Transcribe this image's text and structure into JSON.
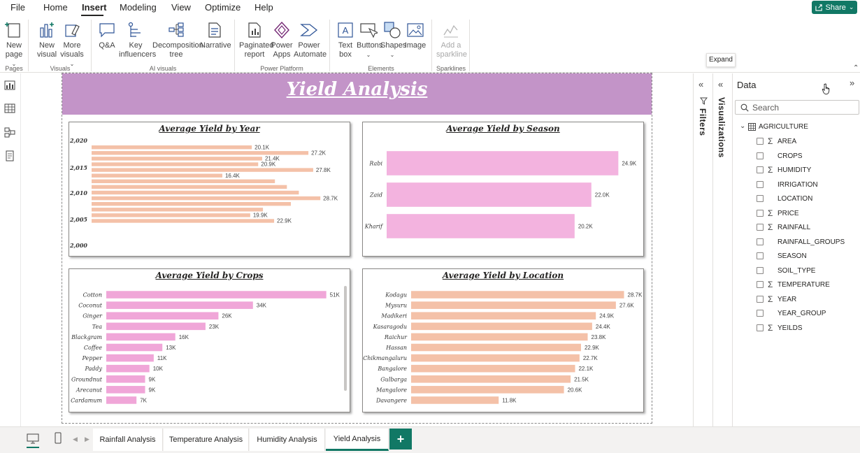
{
  "menu": {
    "items": [
      "File",
      "Home",
      "Insert",
      "Modeling",
      "View",
      "Optimize",
      "Help"
    ],
    "active": "Insert",
    "share_label": "Share"
  },
  "ribbon": {
    "buttons": {
      "new_page": "New\npage",
      "new_visual": "New\nvisual",
      "more_visuals": "More\nvisuals",
      "qa": "Q&A",
      "key_influencers": "Key\ninfluencers",
      "decomposition_tree": "Decomposition\ntree",
      "narrative": "Narrative",
      "paginated_report": "Paginated\nreport",
      "power_apps": "Power\nApps",
      "power_automate": "Power\nAutomate",
      "text_box": "Text\nbox",
      "buttons": "Buttons",
      "shapes": "Shapes",
      "image": "Image",
      "add_sparkline": "Add a\nsparkline"
    },
    "groups": {
      "pages": "Pages",
      "visuals": "Visuals",
      "ai_visuals": "AI visuals",
      "power_platform": "Power Platform",
      "elements": "Elements",
      "sparklines": "Sparklines"
    }
  },
  "report": {
    "title": "Yield Analysis"
  },
  "visuals": {
    "year": {
      "title": "Average Yield by Year",
      "axis_ticks": [
        "2,020",
        "2,015",
        "2,010",
        "2,005",
        "2,000"
      ]
    },
    "season": {
      "title": "Average Yield by Season"
    },
    "crops": {
      "title": "Average Yield by Crops"
    },
    "location": {
      "title": "Average Yield by Location"
    }
  },
  "chart_data": [
    {
      "type": "bar",
      "title": "Average Yield by Year",
      "orientation": "horizontal",
      "y_axis_ticks": [
        2020,
        2015,
        2010,
        2005,
        2000
      ],
      "bar_values": [
        20100,
        27200,
        21400,
        20900,
        27800,
        16400,
        23000,
        24500,
        26000,
        28700,
        25000,
        21500,
        19900,
        22900
      ],
      "data_labels": [
        "20.1K",
        "27.2K",
        "21.4K",
        "20.9K",
        "27.8K",
        "16.4K",
        "",
        "",
        "",
        "28.7K",
        "",
        "",
        "19.9K",
        "22.9K"
      ],
      "xlim": [
        0,
        30000
      ],
      "color": "#f4c1a8"
    },
    {
      "type": "bar",
      "title": "Average Yield by Season",
      "orientation": "horizontal",
      "categories": [
        "Rabi",
        "Zaid",
        "Kharif"
      ],
      "values": [
        24900,
        22000,
        20200
      ],
      "data_labels": [
        "24.9K",
        "22.0K",
        "20.2K"
      ],
      "xlim": [
        0,
        26000
      ],
      "color": "#f3b3df"
    },
    {
      "type": "bar",
      "title": "Average Yield by Crops",
      "orientation": "horizontal",
      "categories": [
        "Cotton",
        "Coconut",
        "Ginger",
        "Tea",
        "Blackgram",
        "Coffee",
        "Pepper",
        "Paddy",
        "Groundnut",
        "Arecanut",
        "Cardamum"
      ],
      "values": [
        51000,
        34000,
        26000,
        23000,
        16000,
        13000,
        11000,
        10000,
        9000,
        9000,
        7000
      ],
      "data_labels": [
        "51K",
        "34K",
        "26K",
        "23K",
        "16K",
        "13K",
        "11K",
        "10K",
        "9K",
        "9K",
        "7K"
      ],
      "xlim": [
        0,
        53000
      ],
      "color": "#f0a6d8"
    },
    {
      "type": "bar",
      "title": "Average Yield by Location",
      "orientation": "horizontal",
      "categories": [
        "Kodagu",
        "Mysuru",
        "Madikeri",
        "Kasaragodu",
        "Raichur",
        "Hassan",
        "Chikmangaluru",
        "Bangalore",
        "Gulbarga",
        "Mangalore",
        "Davangere"
      ],
      "values": [
        28700,
        27600,
        24900,
        24400,
        23800,
        22900,
        22700,
        22100,
        21500,
        20600,
        11800
      ],
      "data_labels": [
        "28.7K",
        "27.6K",
        "24.9K",
        "24.4K",
        "23.8K",
        "22.9K",
        "22.7K",
        "22.1K",
        "21.5K",
        "20.6K",
        "11.8K"
      ],
      "xlim": [
        0,
        29500
      ],
      "color": "#f4c1a8"
    }
  ],
  "panes": {
    "filters_label": "Filters",
    "visualizations_label": "Visualizations",
    "tooltip": "Expand",
    "data": {
      "title": "Data",
      "search_placeholder": "Search",
      "table_name": "AGRICULTURE",
      "fields": [
        {
          "name": "AREA",
          "sigma": true
        },
        {
          "name": "CROPS",
          "sigma": false
        },
        {
          "name": "HUMIDITY",
          "sigma": true
        },
        {
          "name": "IRRIGATION",
          "sigma": false
        },
        {
          "name": "LOCATION",
          "sigma": false
        },
        {
          "name": "PRICE",
          "sigma": true
        },
        {
          "name": "RAINFALL",
          "sigma": true
        },
        {
          "name": "RAINFALL_GROUPS",
          "sigma": false
        },
        {
          "name": "SEASON",
          "sigma": false
        },
        {
          "name": "SOIL_TYPE",
          "sigma": false
        },
        {
          "name": "TEMPERATURE",
          "sigma": true
        },
        {
          "name": "YEAR",
          "sigma": true
        },
        {
          "name": "YEAR_GROUP",
          "sigma": false
        },
        {
          "name": "YEILDS",
          "sigma": true
        }
      ]
    }
  },
  "tabs": {
    "pages": [
      "Rainfall Analysis",
      "Temperature Analysis",
      "Humidity Analysis",
      "Yield Analysis"
    ],
    "active": "Yield Analysis",
    "add_label": "+"
  }
}
